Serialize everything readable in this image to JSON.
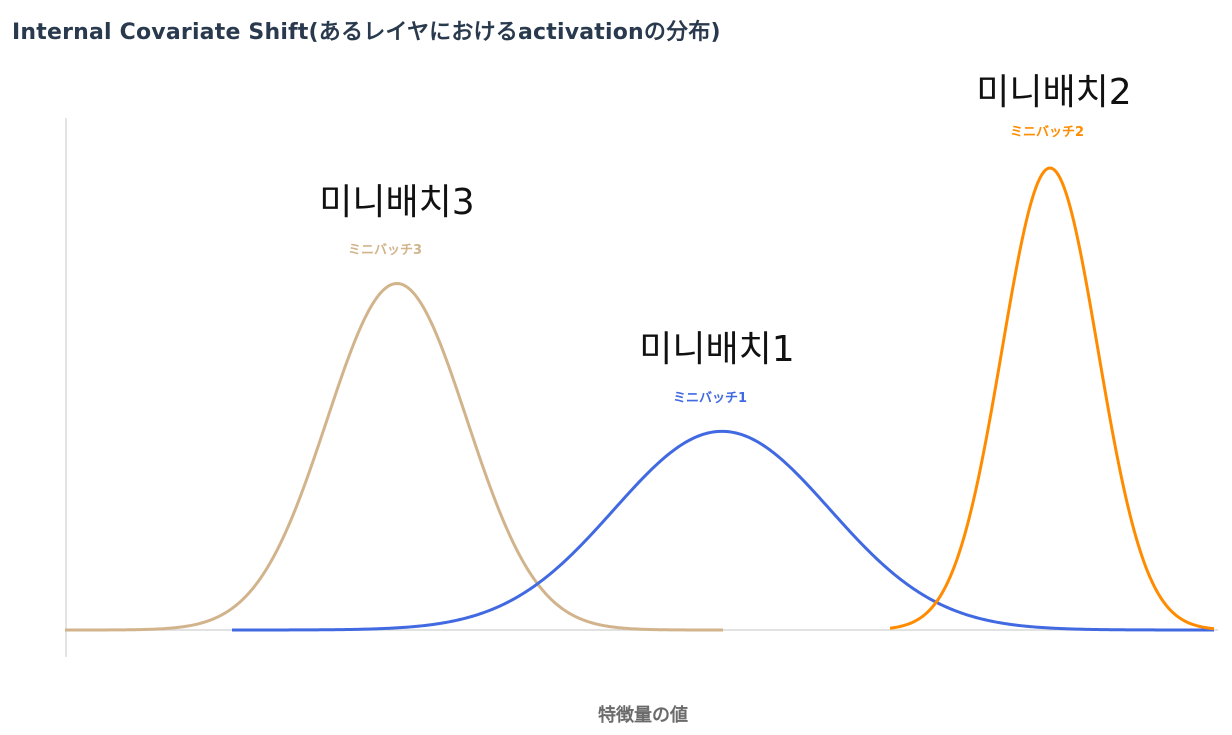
{
  "chart_data": {
    "type": "line",
    "title": "Internal Covariate Shift(あるレイヤにおけるactivationの分布)",
    "xlabel": "特徴量の値",
    "ylabel": "",
    "grid": false,
    "series": [
      {
        "name": "ミニバッチ3",
        "overlay_label": "미니배치3",
        "color": "#d2b48c",
        "mean": 397,
        "sd": 70,
        "peak": 0.75,
        "x_range": [
          65,
          723
        ]
      },
      {
        "name": "ミニバッチ1",
        "overlay_label": "미니배치1",
        "color": "#4169e1",
        "mean": 722,
        "sd": 108,
        "peak": 0.43,
        "x_range": [
          232,
          1215
        ]
      },
      {
        "name": "ミニバッチ2",
        "overlay_label": "미니배치2",
        "color": "#ff8c00",
        "mean": 1050,
        "sd": 48,
        "peak": 1.0,
        "x_range": [
          890,
          1215
        ]
      }
    ]
  }
}
